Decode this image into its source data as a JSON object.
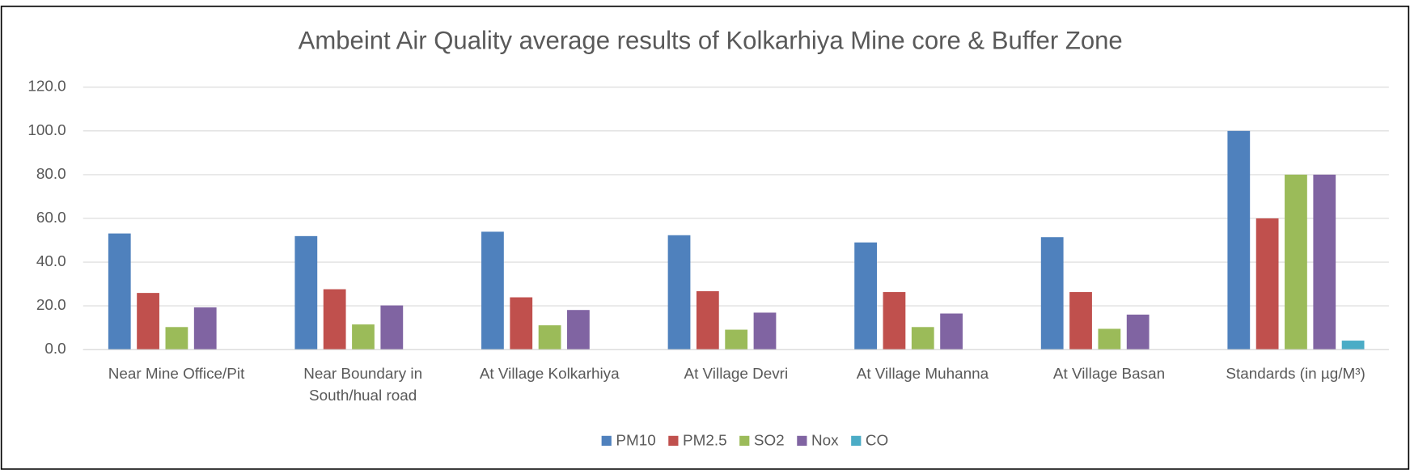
{
  "chart_data": {
    "type": "bar",
    "title": "Ambeint Air Quality average results of Kolkarhiya Mine core & Buffer Zone",
    "categories": [
      "Near Mine Office/Pit",
      "Near Boundary in South/hual road",
      "At Village Kolkarhiya",
      "At Village Devri",
      "At Village Muhanna",
      "At Village Basan",
      "Standards (in µg/M³)"
    ],
    "series": [
      {
        "name": "PM10",
        "color": "#4f81bd",
        "values": [
          53.1,
          51.9,
          53.9,
          52.3,
          49.0,
          51.4,
          100
        ]
      },
      {
        "name": "PM2.5",
        "color": "#c0504d",
        "values": [
          25.9,
          27.6,
          23.9,
          26.7,
          26.3,
          26.3,
          60
        ]
      },
      {
        "name": "SO2",
        "color": "#9bbb59",
        "values": [
          10.3,
          11.5,
          11.1,
          9.1,
          10.3,
          9.5,
          80
        ]
      },
      {
        "name": "Nox",
        "color": "#8064a2",
        "values": [
          19.3,
          20.2,
          18.1,
          16.9,
          16.5,
          16.0,
          80
        ]
      },
      {
        "name": "CO",
        "color": "#4bacc6",
        "values": [
          null,
          null,
          null,
          null,
          null,
          null,
          4.1
        ]
      }
    ],
    "ylim": [
      0,
      120
    ],
    "yticks": [
      {
        "value": 0,
        "label": "0.0"
      },
      {
        "value": 20,
        "label": "20.0"
      },
      {
        "value": 40,
        "label": "40.0"
      },
      {
        "value": 60,
        "label": "60.0"
      },
      {
        "value": 80,
        "label": "80.0"
      },
      {
        "value": 100,
        "label": "100.0"
      },
      {
        "value": 120,
        "label": "120.0"
      }
    ],
    "grid": true,
    "legend": "bottom"
  }
}
